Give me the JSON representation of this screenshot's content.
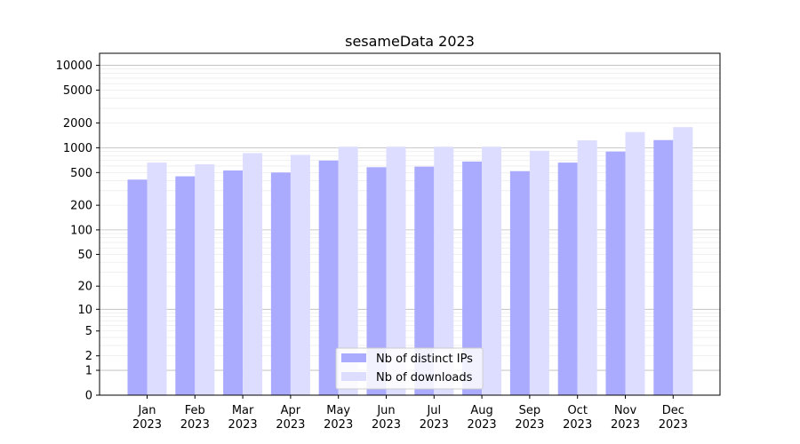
{
  "chart_data": {
    "type": "bar",
    "title": "sesameData 2023",
    "xlabel": "",
    "ylabel": "",
    "y_scale": "symlog",
    "ylim": [
      0,
      14000
    ],
    "y_ticks": [
      0,
      1,
      2,
      5,
      10,
      20,
      50,
      100,
      200,
      500,
      1000,
      2000,
      5000,
      10000
    ],
    "grid": "y",
    "legend_position": "bottom-center",
    "categories": [
      [
        "Jan",
        "2023"
      ],
      [
        "Feb",
        "2023"
      ],
      [
        "Mar",
        "2023"
      ],
      [
        "Apr",
        "2023"
      ],
      [
        "May",
        "2023"
      ],
      [
        "Jun",
        "2023"
      ],
      [
        "Jul",
        "2023"
      ],
      [
        "Aug",
        "2023"
      ],
      [
        "Sep",
        "2023"
      ],
      [
        "Oct",
        "2023"
      ],
      [
        "Nov",
        "2023"
      ],
      [
        "Dec",
        "2023"
      ]
    ],
    "series": [
      {
        "name": "Nb of distinct IPs",
        "color": "#aaaaff",
        "values": [
          410,
          450,
          530,
          500,
          700,
          580,
          590,
          680,
          520,
          660,
          900,
          1240
        ]
      },
      {
        "name": "Nb of downloads",
        "color": "#ddddff",
        "values": [
          660,
          630,
          860,
          820,
          1030,
          1030,
          1030,
          1030,
          920,
          1230,
          1550,
          1780
        ]
      }
    ]
  }
}
